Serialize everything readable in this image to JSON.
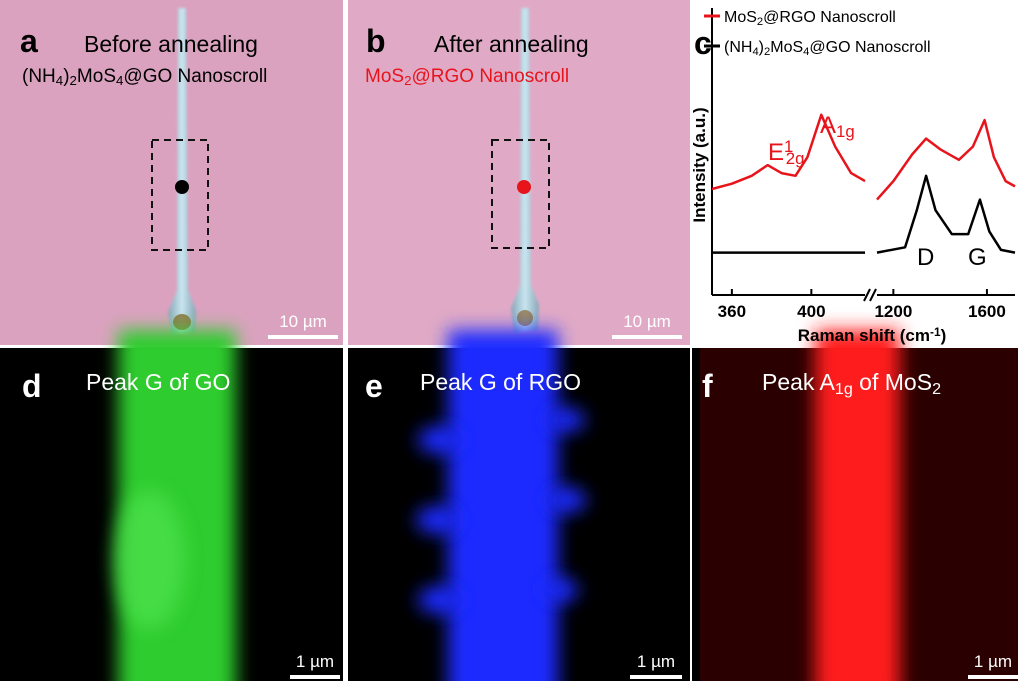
{
  "panels": [
    {
      "letter": "a",
      "title": [
        "Before annealing"
      ],
      "subtitle": [
        "(NH",
        {
          "sub": "4"
        },
        ")",
        {
          "sub": "2"
        },
        "MoS",
        {
          "sub": "4"
        },
        "@GO Nanoscroll"
      ],
      "scale_bar": "10 µm"
    },
    {
      "letter": "b",
      "title": [
        "After annealing"
      ],
      "subtitle": [
        "MoS",
        {
          "sub": "2"
        },
        "@RGO Nanoscroll"
      ],
      "scale_bar": "10 µm"
    },
    {
      "letter": "d",
      "title": [
        "Peak G of GO"
      ],
      "scale_bar": "1 µm"
    },
    {
      "letter": "e",
      "title": [
        "Peak G of  RGO"
      ],
      "scale_bar": "1 µm"
    },
    {
      "letter": "f",
      "title": [
        "Peak A",
        {
          "sub": "1g"
        },
        " of MoS",
        {
          "sub": "2"
        }
      ],
      "scale_bar": "1 µm"
    }
  ],
  "chart_data": {
    "type": "line",
    "letter": "c",
    "x_label": [
      "Raman shift (cm",
      {
        "sup": "-1"
      },
      ")"
    ],
    "y_label": "Intensity (a.u.)",
    "x_segments": [
      {
        "xlim": [
          350,
          427
        ],
        "xticks": [
          360,
          400
        ]
      },
      {
        "xlim": [
          1130,
          1720
        ],
        "xticks": [
          1200,
          1600
        ]
      }
    ],
    "ylim": [
      0,
      10
    ],
    "series": [
      {
        "name": [
          "MoS",
          {
            "sub": "2"
          },
          "@RGO Nanoscroll"
        ],
        "color": "#e8141c",
        "x": [
          350,
          360,
          370,
          378,
          385,
          392,
          398,
          405,
          412,
          420,
          427,
          null,
          1130,
          1200,
          1280,
          1340,
          1400,
          1480,
          1540,
          1590,
          1630,
          1680,
          1720
        ],
        "values": [
          4.0,
          4.2,
          4.5,
          4.9,
          4.6,
          4.5,
          5.2,
          6.8,
          5.6,
          4.6,
          4.3,
          null,
          3.6,
          4.3,
          5.3,
          5.9,
          5.5,
          5.1,
          5.6,
          6.6,
          5.2,
          4.3,
          4.1
        ]
      },
      {
        "name": [
          "(NH",
          {
            "sub": "4"
          },
          ")",
          {
            "sub": "2"
          },
          "MoS",
          {
            "sub": "4"
          },
          "@GO Nanoscroll"
        ],
        "color": "#000000",
        "x": [
          350,
          427,
          null,
          1130,
          1250,
          1300,
          1340,
          1380,
          1450,
          1520,
          1570,
          1610,
          1660,
          1720
        ],
        "values": [
          1.6,
          1.6,
          null,
          1.6,
          1.8,
          3.2,
          4.5,
          3.2,
          2.3,
          2.3,
          3.6,
          2.4,
          1.7,
          1.6
        ]
      }
    ],
    "annotations": [
      [
        "E",
        {
          "sup": "1"
        },
        {
          "sub": "2g"
        }
      ],
      [
        "A",
        {
          "sub": "1g"
        }
      ],
      [
        "D"
      ],
      [
        "G"
      ]
    ]
  }
}
